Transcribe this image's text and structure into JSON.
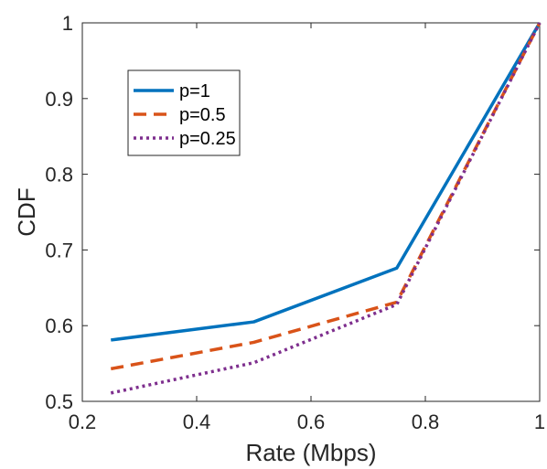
{
  "chart_data": {
    "type": "line",
    "title": "",
    "xlabel": "Rate (Mbps)",
    "ylabel": "CDF",
    "xlim": [
      0.2,
      1
    ],
    "ylim": [
      0.5,
      1
    ],
    "xticks": [
      "0.2",
      "0.4",
      "0.6",
      "0.8",
      "1"
    ],
    "yticks": [
      "0.5",
      "0.6",
      "0.7",
      "0.8",
      "0.9",
      "1"
    ],
    "grid": false,
    "legend_position": "top-left",
    "x": [
      0.25,
      0.5,
      0.75,
      1.0
    ],
    "series": [
      {
        "name": "p=1",
        "values": [
          0.581,
          0.605,
          0.676,
          1.0
        ],
        "color": "#0072BD",
        "style": "solid"
      },
      {
        "name": "p=0.5",
        "values": [
          0.543,
          0.578,
          0.631,
          1.0
        ],
        "color": "#D95319",
        "style": "dashed"
      },
      {
        "name": "p=0.25",
        "values": [
          0.511,
          0.551,
          0.628,
          1.0
        ],
        "color": "#7E2F8E",
        "style": "dotted"
      }
    ]
  }
}
